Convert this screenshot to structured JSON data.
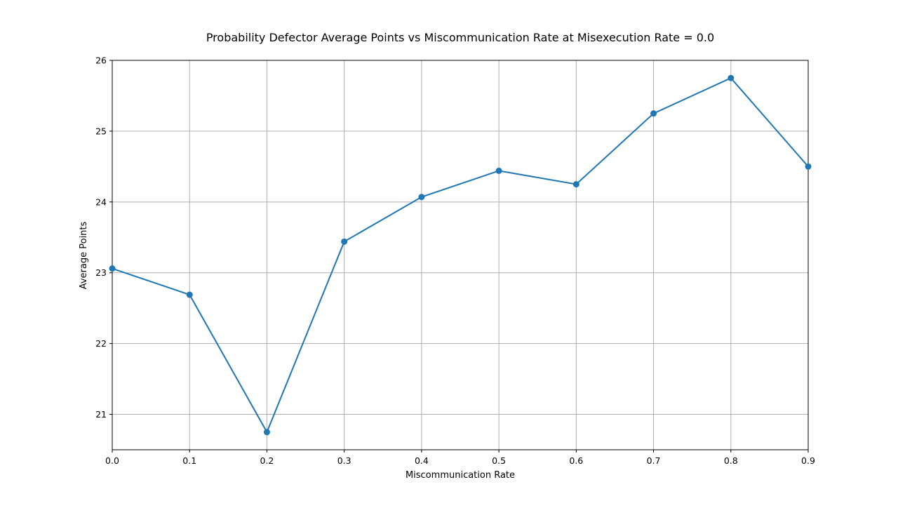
{
  "chart_data": {
    "type": "line",
    "title": "Probability Defector Average Points vs Miscommunication Rate at Misexecution Rate = 0.0",
    "xlabel": "Miscommunication Rate",
    "ylabel": "Average Points",
    "x": [
      0.0,
      0.1,
      0.2,
      0.3,
      0.4,
      0.5,
      0.6,
      0.7,
      0.8,
      0.9
    ],
    "series": [
      {
        "values": [
          23.06,
          22.69,
          20.75,
          23.44,
          24.07,
          24.44,
          24.25,
          25.25,
          25.75,
          24.5
        ]
      }
    ],
    "xlim": [
      0.0,
      0.9
    ],
    "ylim": [
      20.5,
      26.0
    ],
    "xticks": [
      "0.0",
      "0.1",
      "0.2",
      "0.3",
      "0.4",
      "0.5",
      "0.6",
      "0.7",
      "0.8",
      "0.9"
    ],
    "yticks": [
      "21",
      "22",
      "23",
      "24",
      "25",
      "26"
    ],
    "grid": true,
    "line_color": "#1f77b4",
    "grid_color": "#b0b0b0",
    "marker": "circle"
  }
}
